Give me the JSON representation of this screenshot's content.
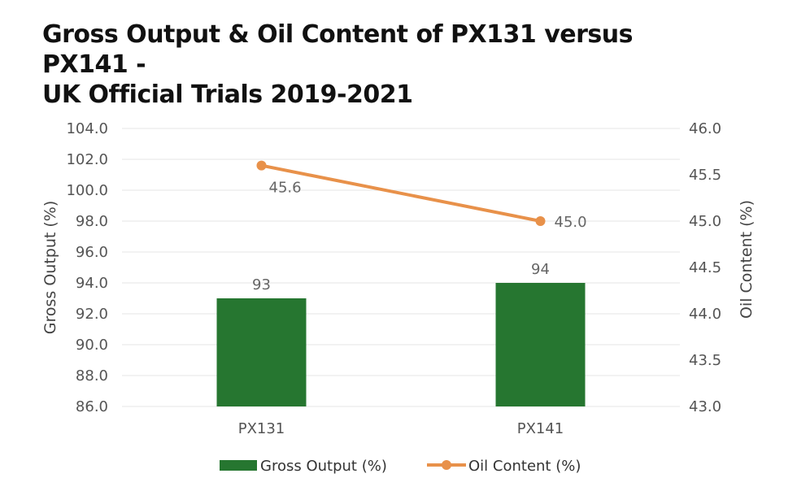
{
  "colors": {
    "bar": "#267630",
    "line": "#E8914A",
    "grid": "#E6E6E6"
  },
  "chart_data": {
    "type": "bar",
    "title": "Gross Output & Oil Content of PX131 versus PX141 -",
    "subtitle": "UK Official Trials 2019-2021",
    "categories": [
      "PX131",
      "PX141"
    ],
    "series": [
      {
        "name": "Gross Output (%)",
        "type": "bar",
        "axis": "left",
        "values": [
          93,
          94
        ],
        "labels": [
          "93",
          "94"
        ]
      },
      {
        "name": "Oil Content (%)",
        "type": "line",
        "axis": "right",
        "values": [
          45.6,
          45.0
        ],
        "labels": [
          "45.6",
          "45.0"
        ]
      }
    ],
    "ylabel": "Gross Output (%)",
    "y2label": "Oil Content (%)",
    "ylim": [
      86.0,
      104.0
    ],
    "y2lim": [
      43.0,
      46.0
    ],
    "yticks": [
      "86.0",
      "88.0",
      "90.0",
      "92.0",
      "94.0",
      "96.0",
      "98.0",
      "100.0",
      "102.0",
      "104.0"
    ],
    "y2ticks": [
      "43.0",
      "43.5",
      "44.0",
      "44.5",
      "45.0",
      "45.5",
      "46.0"
    ],
    "grid": true,
    "legend_position": "bottom"
  }
}
